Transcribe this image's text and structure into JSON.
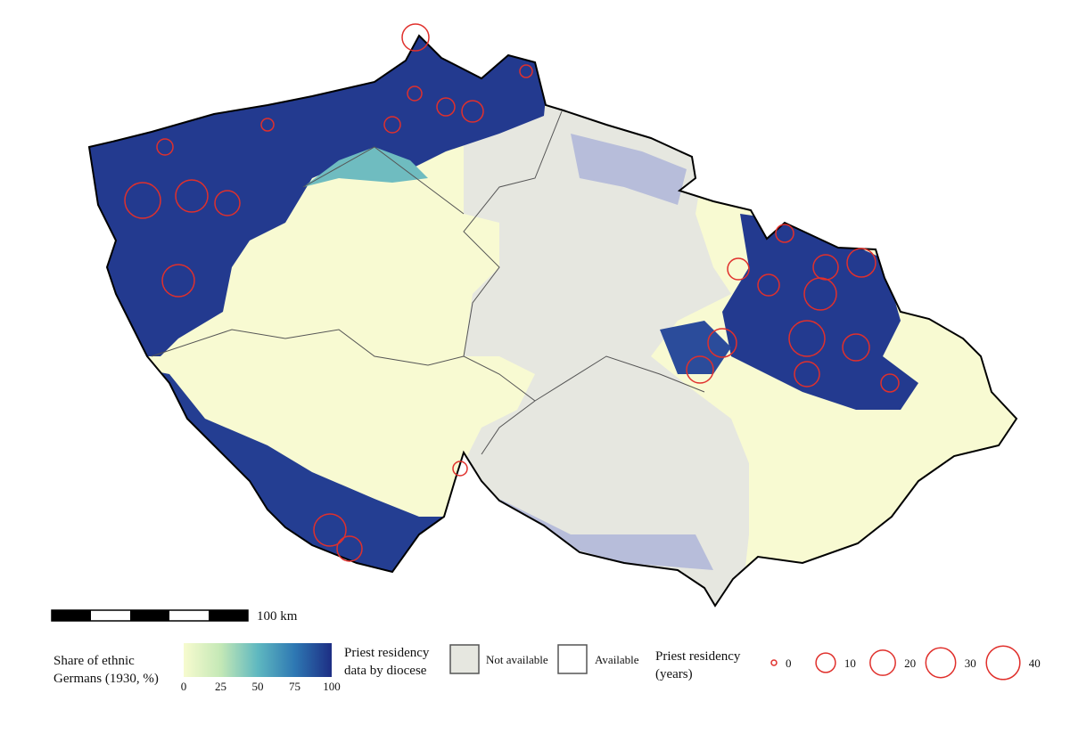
{
  "scale_bar": {
    "label": "100 km"
  },
  "legend": {
    "share": {
      "title_lines": [
        "Share of ethnic",
        "Germans (1930, %)"
      ],
      "ticks": [
        0,
        25,
        50,
        75,
        100
      ]
    },
    "diocese": {
      "title_lines": [
        "Priest residency",
        "data by diocese"
      ],
      "items": [
        "Not available",
        "Available"
      ]
    },
    "residency": {
      "title_lines": [
        "Priest residency",
        "(years)"
      ],
      "sizes": [
        0,
        10,
        20,
        30,
        40
      ]
    }
  }
}
